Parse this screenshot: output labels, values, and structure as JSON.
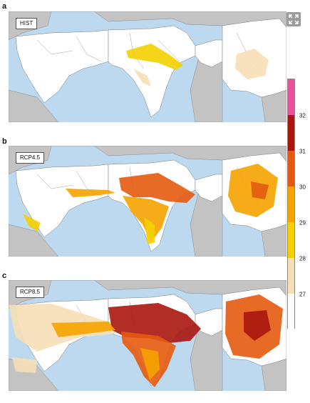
{
  "panels": [
    {
      "letter": "a",
      "label": "HIST"
    },
    {
      "letter": "b",
      "label": "RCP4.5"
    },
    {
      "letter": "c",
      "label": "RCP8.5"
    }
  ],
  "legend": {
    "ticks": [
      "27",
      "28",
      "29",
      "30",
      "31",
      "32"
    ],
    "colors": [
      "#ffffff",
      "#f6dfb6",
      "#f4d000",
      "#f5a300",
      "#e55a10",
      "#a8160e",
      "#e8549a"
    ]
  },
  "icons": {
    "expand": "expand-icon"
  },
  "colors": {
    "ocean": "#bcd9ef",
    "land_outside": "#c3c3c3",
    "land_inside": "#ffffff",
    "boundary": "#7a7a7a"
  }
}
